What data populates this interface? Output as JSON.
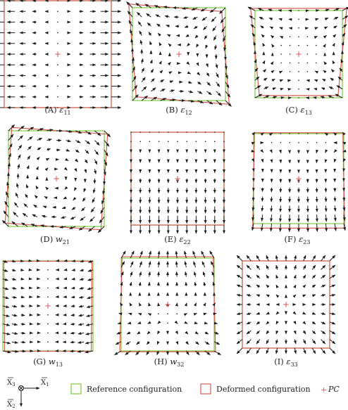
{
  "colors": {
    "reference": "#7ccd3c",
    "deformed": "#e05a55",
    "arrow": "#1a1a1a",
    "pc": "#e05a55"
  },
  "panels": [
    {
      "id": "A",
      "label": "(A) ",
      "sym": "ε",
      "sub": "11",
      "field": "e11"
    },
    {
      "id": "B",
      "label": "(B) ",
      "sym": "ε",
      "sub": "12",
      "field": "e12"
    },
    {
      "id": "C",
      "label": "(C) ",
      "sym": "ε",
      "sub": "13",
      "field": "e13"
    },
    {
      "id": "D",
      "label": "(D) ",
      "sym": "w",
      "sub": "21",
      "field": "w21"
    },
    {
      "id": "E",
      "label": "(E) ",
      "sym": "ε",
      "sub": "22",
      "field": "e22"
    },
    {
      "id": "F",
      "label": "(F) ",
      "sym": "ε",
      "sub": "23",
      "field": "e23"
    },
    {
      "id": "G",
      "label": "(G) ",
      "sym": "w",
      "sub": "13",
      "field": "w13"
    },
    {
      "id": "H",
      "label": "(H) ",
      "sym": "w",
      "sub": "32",
      "field": "w32"
    },
    {
      "id": "I",
      "label": "(I) ",
      "sym": "ε",
      "sub": "33",
      "field": "e33"
    }
  ],
  "axes": {
    "x3": "X",
    "x3_sub": "3",
    "x1": "X",
    "x1_sub": "1",
    "x2": "X",
    "x2_sub": "2"
  },
  "legend": {
    "reference": "Reference configuration",
    "deformed": "Deformed configuration",
    "pc_symbol": "+",
    "pc": "PC"
  }
}
